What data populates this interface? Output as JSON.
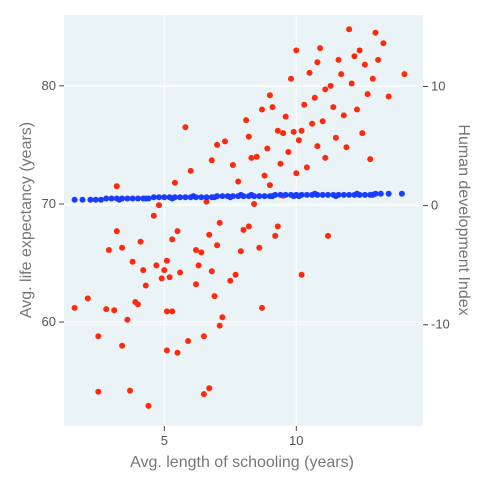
{
  "chart_data": {
    "type": "scatter",
    "xlabel": "Avg. length of schooling (years)",
    "ylabel_left": "Avg. life expectancy (years)",
    "ylabel_right": "Human development Index",
    "xlim": [
      1.2,
      14.8
    ],
    "ylim_left": [
      51.2,
      86.0
    ],
    "ylim_right": [
      -18.5,
      16.0
    ],
    "x_ticks": [
      5,
      10
    ],
    "y_ticks_left": [
      60,
      70,
      80
    ],
    "y_ticks_right": [
      -10,
      0,
      10
    ],
    "grid": true,
    "colors": {
      "panel": "#eaf3f6",
      "grid": "#ffffff",
      "life": "#ff2a0e",
      "hdi": "#1a3cff"
    },
    "series": [
      {
        "axis": "left",
        "color": "#ff2a0e",
        "points": [
          [
            1.6,
            61.2
          ],
          [
            2.1,
            62.0
          ],
          [
            2.5,
            58.8
          ],
          [
            2.5,
            54.1
          ],
          [
            2.8,
            61.1
          ],
          [
            2.9,
            66.1
          ],
          [
            3.1,
            61.0
          ],
          [
            3.2,
            71.5
          ],
          [
            3.2,
            67.7
          ],
          [
            3.4,
            66.3
          ],
          [
            3.4,
            58.0
          ],
          [
            3.6,
            60.2
          ],
          [
            3.7,
            54.2
          ],
          [
            3.8,
            65.1
          ],
          [
            3.9,
            61.7
          ],
          [
            4.0,
            61.5
          ],
          [
            4.1,
            66.8
          ],
          [
            4.2,
            64.4
          ],
          [
            4.3,
            63.1
          ],
          [
            4.4,
            52.9
          ],
          [
            4.6,
            69.0
          ],
          [
            4.7,
            64.8
          ],
          [
            4.8,
            69.9
          ],
          [
            4.9,
            63.7
          ],
          [
            5.0,
            64.4
          ],
          [
            5.1,
            57.6
          ],
          [
            5.1,
            65.2
          ],
          [
            5.1,
            60.9
          ],
          [
            5.2,
            63.8
          ],
          [
            5.3,
            67.0
          ],
          [
            5.3,
            60.9
          ],
          [
            5.5,
            57.4
          ],
          [
            5.4,
            71.8
          ],
          [
            5.5,
            67.7
          ],
          [
            5.6,
            64.2
          ],
          [
            5.8,
            76.5
          ],
          [
            5.9,
            58.4
          ],
          [
            6.0,
            72.8
          ],
          [
            6.2,
            66.1
          ],
          [
            6.2,
            63.2
          ],
          [
            6.3,
            64.8
          ],
          [
            6.4,
            65.9
          ],
          [
            6.5,
            53.9
          ],
          [
            6.5,
            58.8
          ],
          [
            6.6,
            70.2
          ],
          [
            6.7,
            54.4
          ],
          [
            6.7,
            67.4
          ],
          [
            6.8,
            64.3
          ],
          [
            6.8,
            73.7
          ],
          [
            6.9,
            62.2
          ],
          [
            7.0,
            75.0
          ],
          [
            7.0,
            66.5
          ],
          [
            7.1,
            68.4
          ],
          [
            7.1,
            59.7
          ],
          [
            7.2,
            60.4
          ],
          [
            7.3,
            75.3
          ],
          [
            7.5,
            63.5
          ],
          [
            7.6,
            73.3
          ],
          [
            7.7,
            64.0
          ],
          [
            7.8,
            71.9
          ],
          [
            7.9,
            66.0
          ],
          [
            8.0,
            67.8
          ],
          [
            8.1,
            77.1
          ],
          [
            8.2,
            68.1
          ],
          [
            8.2,
            75.7
          ],
          [
            8.3,
            73.9
          ],
          [
            8.4,
            70.0
          ],
          [
            8.5,
            74.0
          ],
          [
            8.6,
            66.3
          ],
          [
            8.7,
            78.0
          ],
          [
            8.7,
            61.2
          ],
          [
            8.8,
            72.4
          ],
          [
            8.9,
            74.7
          ],
          [
            9.0,
            79.2
          ],
          [
            9.0,
            71.6
          ],
          [
            9.1,
            78.2
          ],
          [
            9.2,
            67.3
          ],
          [
            9.3,
            68.1
          ],
          [
            9.3,
            76.2
          ],
          [
            9.4,
            73.4
          ],
          [
            9.5,
            76.0
          ],
          [
            9.5,
            70.7
          ],
          [
            9.6,
            77.4
          ],
          [
            9.7,
            74.4
          ],
          [
            9.8,
            80.6
          ],
          [
            9.9,
            76.1
          ],
          [
            10.0,
            83.0
          ],
          [
            10.0,
            72.6
          ],
          [
            10.1,
            75.4
          ],
          [
            10.2,
            76.2
          ],
          [
            10.2,
            64.0
          ],
          [
            10.3,
            78.4
          ],
          [
            10.4,
            73.1
          ],
          [
            10.5,
            81.1
          ],
          [
            10.6,
            76.8
          ],
          [
            10.7,
            79.0
          ],
          [
            10.8,
            74.9
          ],
          [
            10.8,
            82.0
          ],
          [
            10.9,
            83.2
          ],
          [
            11.0,
            77.0
          ],
          [
            11.1,
            73.9
          ],
          [
            11.1,
            79.7
          ],
          [
            11.2,
            67.3
          ],
          [
            11.3,
            80.0
          ],
          [
            11.4,
            78.2
          ],
          [
            11.5,
            75.6
          ],
          [
            11.6,
            82.2
          ],
          [
            11.7,
            81.0
          ],
          [
            11.8,
            77.5
          ],
          [
            11.9,
            74.8
          ],
          [
            12.0,
            84.8
          ],
          [
            12.1,
            80.2
          ],
          [
            12.2,
            82.5
          ],
          [
            12.3,
            78.0
          ],
          [
            12.4,
            83.0
          ],
          [
            12.5,
            76.0
          ],
          [
            12.6,
            81.8
          ],
          [
            12.7,
            79.3
          ],
          [
            12.8,
            73.8
          ],
          [
            12.9,
            80.6
          ],
          [
            13.0,
            84.5
          ],
          [
            13.1,
            82.2
          ],
          [
            13.3,
            83.6
          ],
          [
            13.5,
            79.1
          ],
          [
            14.1,
            81.0
          ]
        ]
      },
      {
        "axis": "right",
        "color": "#1a3cff",
        "points": [
          [
            1.6,
            0.5
          ],
          [
            1.9,
            0.5
          ],
          [
            2.2,
            0.5
          ],
          [
            2.4,
            0.5
          ],
          [
            2.6,
            0.5
          ],
          [
            2.8,
            0.6
          ],
          [
            3.0,
            0.6
          ],
          [
            3.2,
            0.6
          ],
          [
            3.4,
            0.6
          ],
          [
            3.6,
            0.6
          ],
          [
            3.8,
            0.6
          ],
          [
            4.0,
            0.6
          ],
          [
            4.2,
            0.6
          ],
          [
            4.4,
            0.6
          ],
          [
            4.6,
            0.7
          ],
          [
            4.8,
            0.7
          ],
          [
            5.0,
            0.7
          ],
          [
            5.2,
            0.7
          ],
          [
            5.4,
            0.7
          ],
          [
            5.6,
            0.7
          ],
          [
            5.8,
            0.7
          ],
          [
            6.0,
            0.7
          ],
          [
            6.2,
            0.7
          ],
          [
            6.4,
            0.7
          ],
          [
            6.6,
            0.7
          ],
          [
            6.8,
            0.7
          ],
          [
            7.0,
            0.8
          ],
          [
            7.2,
            0.8
          ],
          [
            7.4,
            0.8
          ],
          [
            7.6,
            0.8
          ],
          [
            7.8,
            0.8
          ],
          [
            8.0,
            0.8
          ],
          [
            8.2,
            0.8
          ],
          [
            8.4,
            0.8
          ],
          [
            8.6,
            0.8
          ],
          [
            8.8,
            0.8
          ],
          [
            9.0,
            0.8
          ],
          [
            9.2,
            0.9
          ],
          [
            9.4,
            0.9
          ],
          [
            9.6,
            0.9
          ],
          [
            9.8,
            0.9
          ],
          [
            10.0,
            0.9
          ],
          [
            10.2,
            0.9
          ],
          [
            10.4,
            0.9
          ],
          [
            10.6,
            0.9
          ],
          [
            10.8,
            0.9
          ],
          [
            11.0,
            0.9
          ],
          [
            11.2,
            0.9
          ],
          [
            11.4,
            0.9
          ],
          [
            11.6,
            0.9
          ],
          [
            11.8,
            0.9
          ],
          [
            12.0,
            0.9
          ],
          [
            12.2,
            0.9
          ],
          [
            12.4,
            0.9
          ],
          [
            12.6,
            0.9
          ],
          [
            12.8,
            0.9
          ],
          [
            13.0,
            1.0
          ],
          [
            13.2,
            1.0
          ],
          [
            13.5,
            1.0
          ],
          [
            14.0,
            1.0
          ],
          [
            4.3,
            0.6
          ],
          [
            5.3,
            0.6
          ],
          [
            6.1,
            0.8
          ],
          [
            6.9,
            0.7
          ],
          [
            7.5,
            0.7
          ],
          [
            8.3,
            0.9
          ],
          [
            9.1,
            0.8
          ],
          [
            9.9,
            0.8
          ],
          [
            10.7,
            1.0
          ],
          [
            11.5,
            0.8
          ],
          [
            12.3,
            1.0
          ],
          [
            12.9,
            0.9
          ],
          [
            3.3,
            0.5
          ],
          [
            7.9,
            0.9
          ],
          [
            10.1,
            0.8
          ]
        ]
      }
    ]
  }
}
